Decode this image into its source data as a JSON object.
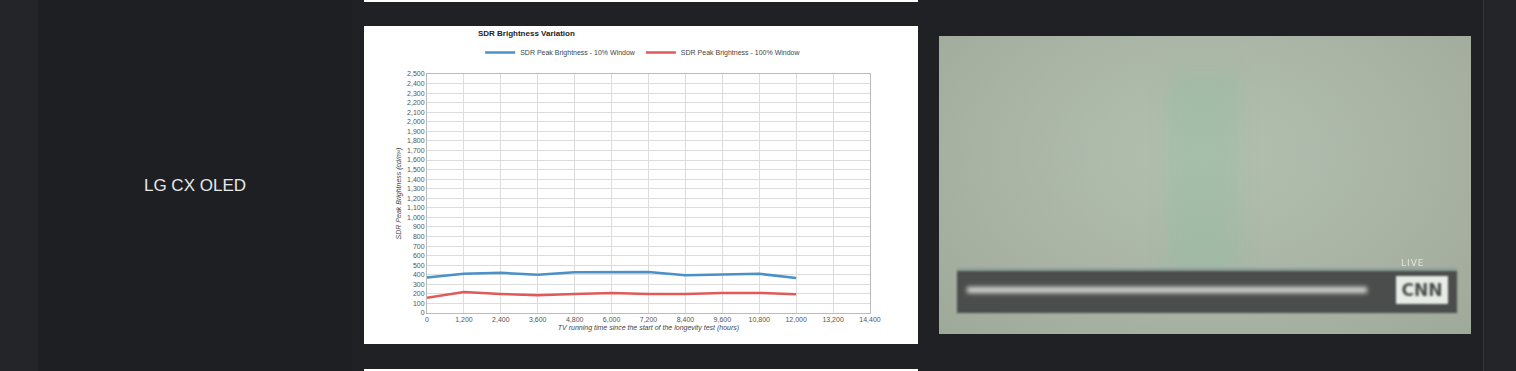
{
  "row_label": "LG CX OLED",
  "chart_data": {
    "type": "line",
    "title": "SDR Brightness Variation",
    "x_label": "TV running time since the start of the longevity test (hours)",
    "y_label": "SDR Peak Brightness (cd/m²)",
    "x": [
      0,
      1200,
      2400,
      3600,
      4800,
      6000,
      7200,
      8400,
      9600,
      10800,
      12000
    ],
    "series": [
      {
        "name": "SDR Peak Brightness - 10% Window",
        "color": "#4a90c9",
        "values": [
          370,
          410,
          420,
          400,
          425,
          425,
          430,
          395,
          405,
          410,
          365
        ]
      },
      {
        "name": "SDR Peak Brightness - 100% Window",
        "color": "#e05a5a",
        "values": [
          160,
          220,
          200,
          185,
          200,
          210,
          200,
          200,
          210,
          210,
          195
        ]
      }
    ],
    "xlim": [
      0,
      14400
    ],
    "xticks": [
      0,
      {
        "value": 1200,
        "label": "1,200"
      },
      {
        "value": 2400,
        "label": "2,400"
      },
      {
        "value": 3600,
        "label": "3,600"
      },
      {
        "value": 4800,
        "label": "4,800"
      },
      {
        "value": 6000,
        "label": "6,000"
      },
      {
        "value": 7200,
        "label": "7,200"
      },
      {
        "value": 8400,
        "label": "8,400"
      },
      {
        "value": 9600,
        "label": "9,600"
      },
      {
        "value": 10800,
        "label": "10,800"
      },
      {
        "value": 12000,
        "label": "12,000"
      },
      {
        "value": 13200,
        "label": "13,200"
      },
      {
        "value": 14400,
        "label": "14,400"
      }
    ],
    "ylim": [
      0,
      2500
    ],
    "yticks": [
      0,
      100,
      200,
      300,
      400,
      500,
      600,
      700,
      800,
      900,
      {
        "value": 1000,
        "label": "1,000"
      },
      {
        "value": 1100,
        "label": "1,100"
      },
      {
        "value": 1200,
        "label": "1,200"
      },
      {
        "value": 1300,
        "label": "1,300"
      },
      {
        "value": 1400,
        "label": "1,400"
      },
      {
        "value": 1500,
        "label": "1,500"
      },
      {
        "value": 1600,
        "label": "1,600"
      },
      {
        "value": 1700,
        "label": "1,700"
      },
      {
        "value": 1800,
        "label": "1,800"
      },
      {
        "value": 1900,
        "label": "1,900"
      },
      {
        "value": 2000,
        "label": "2,000"
      },
      {
        "value": 2100,
        "label": "2,100"
      },
      {
        "value": 2200,
        "label": "2,200"
      },
      {
        "value": 2300,
        "label": "2,300"
      },
      {
        "value": 2400,
        "label": "2,400"
      },
      {
        "value": 2500,
        "label": "2,500"
      }
    ],
    "grid": true,
    "legend": "top"
  },
  "photo_texts": {
    "badge": "LIVE",
    "logo": "CNN"
  }
}
